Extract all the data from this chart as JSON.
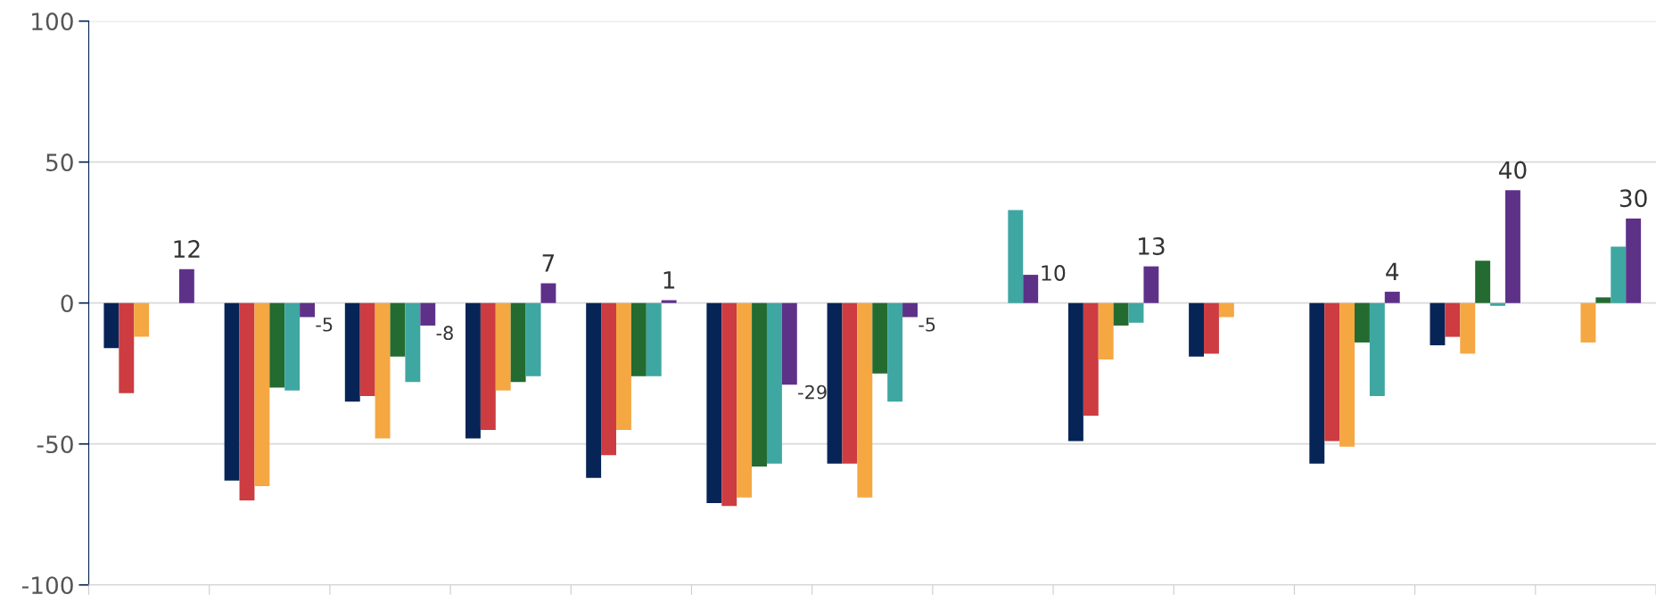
{
  "chart_data": {
    "type": "bar",
    "categories": [
      null,
      null,
      null,
      null,
      null,
      null,
      null,
      null,
      null,
      null,
      null,
      null,
      null
    ],
    "series": [
      {
        "color": "#062456",
        "values": [
          -16,
          -63,
          -35,
          -48,
          -62,
          -71,
          -57,
          null,
          -49,
          -19,
          -57,
          -15,
          null
        ]
      },
      {
        "color": "#cc3c41",
        "values": [
          -32,
          -70,
          -33,
          -45,
          -54,
          -72,
          -57,
          null,
          -40,
          -18,
          -49,
          -12,
          null
        ]
      },
      {
        "color": "#f5a742",
        "values": [
          -12,
          -65,
          -48,
          -31,
          -45,
          -69,
          -69,
          null,
          -20,
          -5,
          -51,
          -18,
          -14
        ]
      },
      {
        "color": "#236b30",
        "values": [
          null,
          -30,
          -19,
          -28,
          -26,
          -58,
          -25,
          null,
          -8,
          null,
          -14,
          15,
          2
        ]
      },
      {
        "color": "#3ea7a2",
        "values": [
          null,
          -31,
          -28,
          -26,
          -26,
          -57,
          -35,
          33,
          -7,
          null,
          -33,
          -1,
          20
        ]
      },
      {
        "color": "#5e3189",
        "values": [
          12,
          -5,
          -8,
          7,
          1,
          -29,
          -5,
          10,
          13,
          null,
          4,
          40,
          30
        ],
        "value_labels": [
          "12",
          "-5",
          "-8",
          "7",
          "1",
          "-29",
          "-5",
          "10",
          "13",
          null,
          "4",
          "40",
          "30"
        ]
      }
    ],
    "ylim": [
      -100,
      100
    ],
    "yticks": [
      -100,
      -50,
      0,
      50,
      100
    ],
    "grid": "y"
  }
}
